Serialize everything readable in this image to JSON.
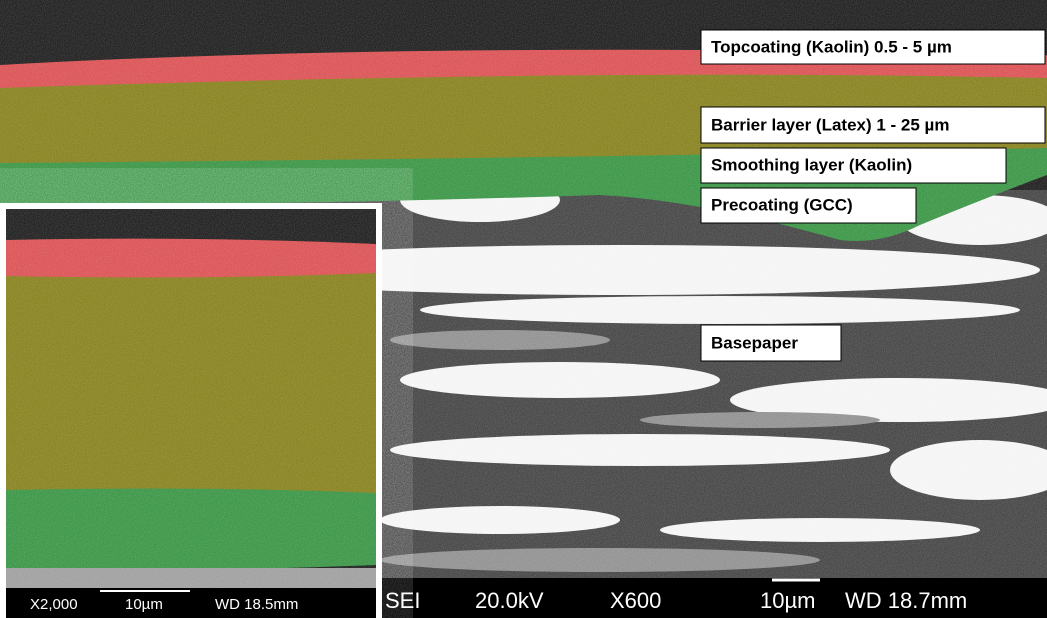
{
  "labels": {
    "topcoating": "Topcoating (Kaolin) 0.5 - 5 µm",
    "barrier": "Barrier layer (Latex) 1 - 25 µm",
    "smoothing": "Smoothing layer (Kaolin)",
    "precoating": "Precoating (GCC)",
    "basepaper": "Basepaper"
  },
  "inset_scale": {
    "magnification": "X2,000",
    "bar": "10µm",
    "working_distance": "WD 18.5mm"
  },
  "main_scale": {
    "detector": "SEI",
    "voltage": "20.0kV",
    "magnification": "X600",
    "bar": "10µm",
    "working_distance": "WD 18.7mm"
  }
}
